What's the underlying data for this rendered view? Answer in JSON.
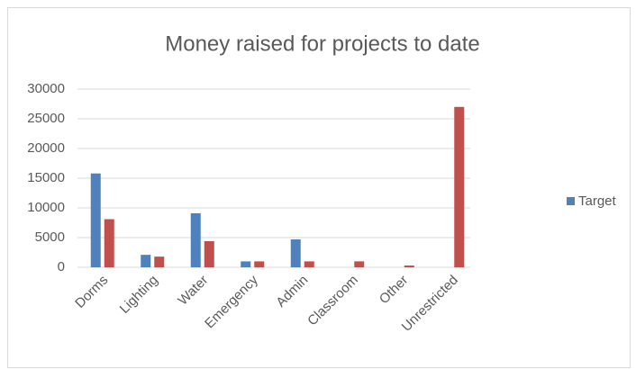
{
  "chart_data": {
    "type": "bar",
    "title": "Money raised for projects to date",
    "categories": [
      "Dorms",
      "Lighting",
      "Water",
      "Emergency",
      "Admin",
      "Classroom",
      "Other",
      "Unrestricted"
    ],
    "series": [
      {
        "name": "Target",
        "color": "#4f81bd",
        "values": [
          15800,
          2100,
          9100,
          1000,
          4700,
          0,
          0,
          0
        ]
      },
      {
        "color": "#c0504d",
        "values": [
          8100,
          1800,
          4400,
          1000,
          1000,
          1000,
          300,
          27000
        ]
      }
    ],
    "ylim": [
      0,
      30000
    ],
    "yticks": [
      0,
      5000,
      10000,
      15000,
      20000,
      25000,
      30000
    ],
    "grid": true,
    "legend": "right"
  }
}
